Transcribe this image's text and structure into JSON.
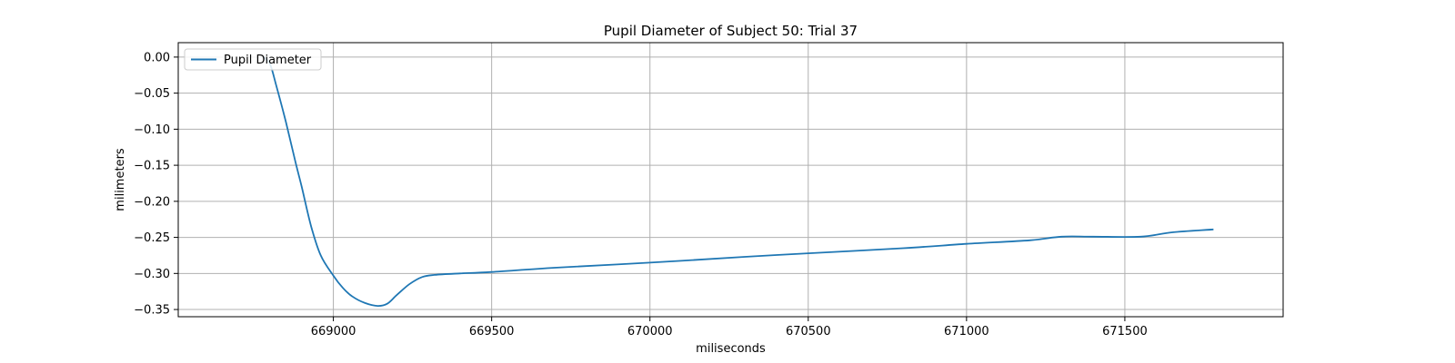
{
  "chart_data": {
    "type": "line",
    "title": "Pupil Diameter of Subject 50: Trial 37",
    "xlabel": "miliseconds",
    "ylabel": "milimeters",
    "xlim": [
      668510,
      672000
    ],
    "ylim": [
      -0.36,
      0.02
    ],
    "xticks": [
      669000,
      669500,
      670000,
      670500,
      671000,
      671500
    ],
    "xtick_labels": [
      "669000",
      "669500",
      "670000",
      "670500",
      "671000",
      "671500"
    ],
    "yticks": [
      0.0,
      -0.05,
      -0.1,
      -0.15,
      -0.2,
      -0.25,
      -0.3,
      -0.35
    ],
    "ytick_labels": [
      "0.00",
      "−0.05",
      "−0.10",
      "−0.15",
      "−0.20",
      "−0.25",
      "−0.30",
      "−0.35"
    ],
    "grid": true,
    "legend_position": "top-left",
    "series": [
      {
        "name": "Pupil Diameter",
        "color": "#1f77b4",
        "x": [
          668780,
          668800,
          668820,
          668850,
          668880,
          668900,
          668930,
          668960,
          669000,
          669030,
          669060,
          669100,
          669140,
          669170,
          669200,
          669240,
          669280,
          669320,
          669400,
          669500,
          669700,
          670000,
          670300,
          670500,
          670800,
          671000,
          671200,
          671300,
          671400,
          671550,
          671650,
          671780
        ],
        "y": [
          0.0,
          -0.01,
          -0.04,
          -0.09,
          -0.145,
          -0.18,
          -0.235,
          -0.275,
          -0.303,
          -0.32,
          -0.332,
          -0.341,
          -0.345,
          -0.342,
          -0.33,
          -0.315,
          -0.305,
          -0.302,
          -0.3,
          -0.298,
          -0.292,
          -0.285,
          -0.277,
          -0.272,
          -0.265,
          -0.259,
          -0.254,
          -0.249,
          -0.249,
          -0.249,
          -0.243,
          -0.239
        ]
      }
    ]
  }
}
